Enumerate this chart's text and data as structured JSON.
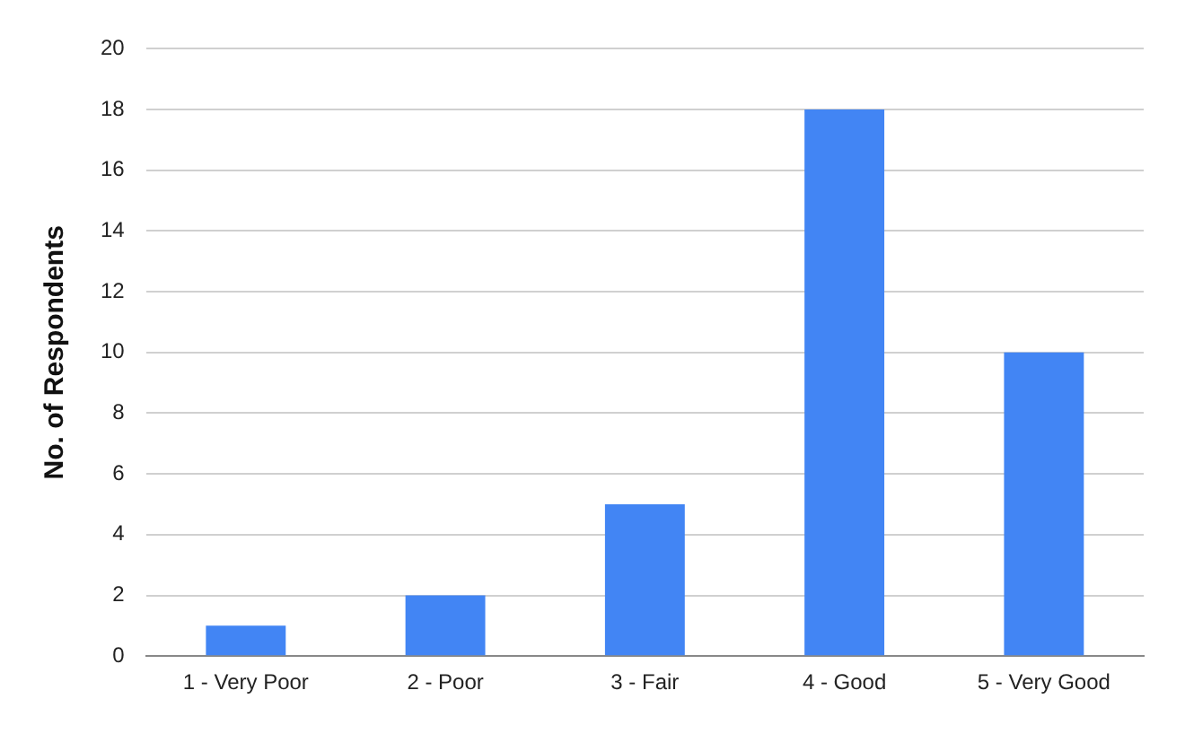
{
  "chart_data": {
    "type": "bar",
    "ylabel": "No. of Respondents",
    "categories": [
      "1 - Very Poor",
      "2 - Poor",
      "3 - Fair",
      "4 - Good",
      "5 - Very Good"
    ],
    "values": [
      1,
      2,
      5,
      18,
      10
    ],
    "color": "#4285f4",
    "ylim": [
      0,
      20
    ],
    "yticks": [
      0,
      2,
      4,
      6,
      8,
      10,
      12,
      14,
      16,
      18,
      20
    ],
    "grid": "y",
    "legend": false
  }
}
